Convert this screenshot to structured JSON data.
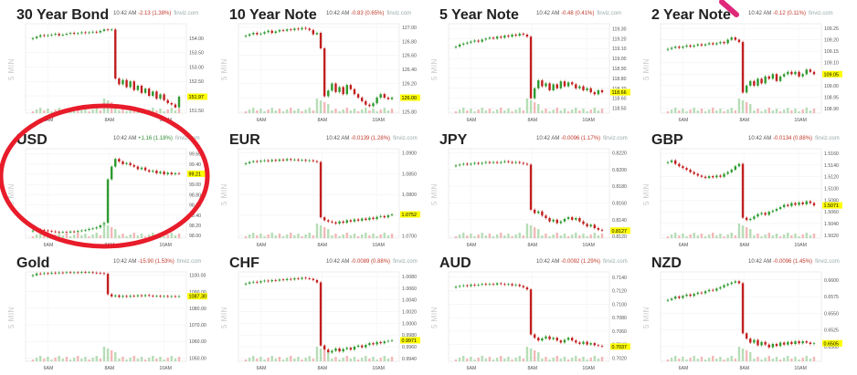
{
  "chart_data": [
    {
      "type": "candlestick",
      "title": "30 Year Bond",
      "interval_label": "5 MIN",
      "time": "10:42 AM",
      "change": "-2.13 (1.38%)",
      "source": "finviz.com",
      "y_ticks": [
        "154.00",
        "153.50",
        "153.00",
        "152.50",
        "152.00",
        "151.50"
      ],
      "y_range": [
        151.4,
        154.5
      ],
      "x_ticks": [
        "6AM",
        "8AM",
        "10AM"
      ],
      "last_value": "151.97",
      "close": [
        154.0,
        154.05,
        154.1,
        154.08,
        154.1,
        154.12,
        154.15,
        154.1,
        154.12,
        154.15,
        154.18,
        154.15,
        154.17,
        154.2,
        154.18,
        154.2,
        154.22,
        154.2,
        154.25,
        154.3,
        154.28,
        154.3,
        152.6,
        152.4,
        152.55,
        152.3,
        152.5,
        152.2,
        152.35,
        152.1,
        152.25,
        152.0,
        152.15,
        151.9,
        152.05,
        151.85,
        151.75,
        151.7,
        151.6,
        151.97
      ]
    },
    {
      "type": "candlestick",
      "title": "10 Year Note",
      "interval_label": "5 MIN",
      "time": "10:42 AM",
      "change": "-0.83 (0.65%)",
      "source": "finviz.com",
      "y_ticks": [
        "127.00",
        "126.80",
        "126.60",
        "126.40",
        "126.20",
        "126.00",
        "125.80"
      ],
      "y_range": [
        125.78,
        127.05
      ],
      "x_ticks": [
        "6AM",
        "8AM",
        "10AM"
      ],
      "last_value": "126.00",
      "close": [
        126.88,
        126.9,
        126.92,
        126.9,
        126.91,
        126.93,
        126.95,
        126.92,
        126.94,
        126.96,
        126.95,
        126.97,
        126.96,
        126.98,
        126.97,
        126.99,
        126.98,
        126.96,
        126.9,
        126.92,
        126.7,
        126.02,
        126.1,
        126.2,
        126.08,
        126.15,
        126.05,
        126.18,
        126.12,
        126.05,
        126.0,
        125.95,
        125.9,
        125.88,
        125.92,
        126.0,
        126.05,
        126.0,
        125.98,
        126.0
      ]
    },
    {
      "type": "candlestick",
      "title": "5 Year Note",
      "interval_label": "5 MIN",
      "time": "10:42 AM",
      "change": "-0.48 (0.41%)",
      "source": "finviz.com",
      "y_ticks": [
        "119.30",
        "119.20",
        "119.10",
        "119.00",
        "118.90",
        "118.80",
        "118.70",
        "118.60",
        "118.50"
      ],
      "y_range": [
        118.45,
        119.35
      ],
      "x_ticks": [
        "6AM",
        "8AM",
        "10AM"
      ],
      "last_value": "118.66",
      "close": [
        119.12,
        119.14,
        119.15,
        119.16,
        119.17,
        119.18,
        119.17,
        119.19,
        119.2,
        119.21,
        119.2,
        119.22,
        119.21,
        119.23,
        119.22,
        119.24,
        119.23,
        119.25,
        119.24,
        119.22,
        118.6,
        118.7,
        118.78,
        118.72,
        118.75,
        118.68,
        118.74,
        118.7,
        118.77,
        118.72,
        118.76,
        118.74,
        118.7,
        118.72,
        118.68,
        118.7,
        118.66,
        118.64,
        118.68,
        118.66
      ]
    },
    {
      "type": "candlestick",
      "title": "2 Year Note",
      "interval_label": "5 MIN",
      "time": "10:42 AM",
      "change": "-0.12 (0.11%)",
      "source": "finviz.com",
      "y_ticks": [
        "109.25",
        "109.20",
        "109.15",
        "109.10",
        "109.05",
        "109.00",
        "108.95",
        "108.90"
      ],
      "y_range": [
        108.88,
        109.27
      ],
      "x_ticks": [
        "6AM",
        "8AM",
        "10AM"
      ],
      "last_value": "109.05",
      "close": [
        109.16,
        109.165,
        109.17,
        109.165,
        109.17,
        109.175,
        109.17,
        109.175,
        109.18,
        109.175,
        109.18,
        109.185,
        109.18,
        109.185,
        109.19,
        109.185,
        109.2,
        109.21,
        109.2,
        109.19,
        108.97,
        109.0,
        109.02,
        109.0,
        109.03,
        109.01,
        109.04,
        109.03,
        109.05,
        109.02,
        109.04,
        109.05,
        109.06,
        109.05,
        109.06,
        109.04,
        109.05,
        109.07,
        109.06,
        109.05
      ]
    },
    {
      "type": "candlestick",
      "title": "USD",
      "interval_label": "5 MIN",
      "time": "10:42 AM",
      "change": "+1.16 (1.18%)",
      "change_up": true,
      "source": "finviz.com",
      "y_ticks": [
        "99.60",
        "99.40",
        "99.20",
        "99.00",
        "98.80",
        "98.60",
        "98.40",
        "98.20",
        "98.00"
      ],
      "y_range": [
        97.95,
        99.7
      ],
      "x_ticks": [
        "6AM",
        "8AM",
        "10AM"
      ],
      "last_value": "99.21",
      "close": [
        98.1,
        98.12,
        98.11,
        98.1,
        98.09,
        98.08,
        98.07,
        98.06,
        98.07,
        98.06,
        98.08,
        98.07,
        98.09,
        98.1,
        98.11,
        98.13,
        98.14,
        98.16,
        98.2,
        98.25,
        99.1,
        99.35,
        99.5,
        99.45,
        99.4,
        99.42,
        99.38,
        99.35,
        99.3,
        99.33,
        99.28,
        99.25,
        99.27,
        99.22,
        99.25,
        99.2,
        99.23,
        99.2,
        99.22,
        99.21
      ]
    },
    {
      "type": "candlestick",
      "title": "EUR",
      "interval_label": "5 MIN",
      "time": "10:42 AM",
      "change": "-0.0139 (1.28%)",
      "source": "finviz.com",
      "y_ticks": [
        "1.0900",
        "1.0850",
        "1.0800",
        "1.0750",
        "1.0700"
      ],
      "y_range": [
        1.0695,
        1.091
      ],
      "x_ticks": [
        "6AM",
        "8AM",
        "10AM"
      ],
      "last_value": "1.0752",
      "close": [
        1.0875,
        1.0878,
        1.088,
        1.0879,
        1.0881,
        1.0882,
        1.088,
        1.0883,
        1.0881,
        1.0884,
        1.0882,
        1.0885,
        1.0883,
        1.0884,
        1.0882,
        1.0883,
        1.0881,
        1.0882,
        1.088,
        1.0878,
        1.0745,
        1.0738,
        1.0735,
        1.0733,
        1.073,
        1.0735,
        1.0732,
        1.0738,
        1.0735,
        1.074,
        1.0737,
        1.0742,
        1.0739,
        1.0744,
        1.0741,
        1.0746,
        1.0748,
        1.0745,
        1.075,
        1.0752
      ]
    },
    {
      "type": "candlestick",
      "title": "JPY",
      "interval_label": "5 MIN",
      "time": "10:42 AM",
      "change": "-0.0096 (1.17%)",
      "source": "finviz.com",
      "y_ticks": [
        "0.8220",
        "0.8200",
        "0.8180",
        "0.8160",
        "0.8140",
        "0.8120"
      ],
      "y_range": [
        0.8118,
        0.8225
      ],
      "x_ticks": [
        "6AM",
        "8AM",
        "10AM"
      ],
      "last_value": "0.8127",
      "close": [
        0.8205,
        0.8206,
        0.8207,
        0.8206,
        0.8207,
        0.8208,
        0.8207,
        0.8208,
        0.8209,
        0.8208,
        0.8209,
        0.8208,
        0.8209,
        0.821,
        0.8209,
        0.8208,
        0.8209,
        0.8208,
        0.8207,
        0.8206,
        0.8152,
        0.8148,
        0.815,
        0.8145,
        0.8142,
        0.8138,
        0.814,
        0.8136,
        0.8138,
        0.8141,
        0.8143,
        0.814,
        0.8142,
        0.8138,
        0.8135,
        0.8132,
        0.8134,
        0.813,
        0.8128,
        0.8127
      ]
    },
    {
      "type": "candlestick",
      "title": "GBP",
      "interval_label": "5 MIN",
      "time": "10:42 AM",
      "change": "-0.0134 (0.88%)",
      "source": "finviz.com",
      "y_ticks": [
        "1.5160",
        "1.5140",
        "1.5120",
        "1.5100",
        "1.5080",
        "1.5060",
        "1.5040",
        "1.5020"
      ],
      "y_range": [
        1.5015,
        1.5168
      ],
      "x_ticks": [
        "6AM",
        "8AM",
        "10AM"
      ],
      "last_value": "1.5071",
      "close": [
        1.5145,
        1.5148,
        1.5142,
        1.5138,
        1.5135,
        1.5132,
        1.5128,
        1.5125,
        1.5122,
        1.512,
        1.5118,
        1.5121,
        1.5119,
        1.5122,
        1.512,
        1.5125,
        1.5128,
        1.5132,
        1.5138,
        1.5142,
        1.505,
        1.5046,
        1.5048,
        1.5052,
        1.5056,
        1.5058,
        1.5055,
        1.506,
        1.5062,
        1.5065,
        1.5068,
        1.5072,
        1.507,
        1.5075,
        1.5072,
        1.5076,
        1.5073,
        1.5078,
        1.5075,
        1.5071
      ]
    },
    {
      "type": "candlestick",
      "title": "Gold",
      "interval_label": "5 MIN",
      "time": "10:42 AM",
      "change": "-15.90 (1.53%)",
      "source": "finviz.com",
      "y_ticks": [
        "1100.00",
        "1090.00",
        "1080.00",
        "1070.00",
        "1060.00",
        "1050.00"
      ],
      "y_range": [
        1048,
        1102
      ],
      "x_ticks": [
        "6AM",
        "8AM",
        "10AM"
      ],
      "last_value": "1087.30",
      "close": [
        1100.0,
        1101.0,
        1100.8,
        1101.2,
        1101.0,
        1101.5,
        1101.3,
        1101.6,
        1101.4,
        1101.8,
        1101.5,
        1101.7,
        1101.6,
        1101.9,
        1101.7,
        1101.8,
        1101.5,
        1101.4,
        1101.2,
        1100.8,
        1088.5,
        1087.2,
        1087.8,
        1086.9,
        1087.5,
        1087.0,
        1087.6,
        1087.3,
        1087.9,
        1087.4,
        1088.0,
        1087.6,
        1087.3,
        1087.5,
        1087.2,
        1087.4,
        1087.1,
        1087.3,
        1087.2,
        1087.3
      ]
    },
    {
      "type": "candlestick",
      "title": "CHF",
      "interval_label": "5 MIN",
      "time": "10:42 AM",
      "change": "-0.0089 (0.88%)",
      "source": "finviz.com",
      "y_ticks": [
        "1.0080",
        "1.0060",
        "1.0040",
        "1.0020",
        "1.0000",
        "0.9980",
        "0.9960",
        "0.9940"
      ],
      "y_range": [
        0.9935,
        1.0088
      ],
      "x_ticks": [
        "6AM",
        "8AM",
        "10AM"
      ],
      "last_value": "0.9971",
      "close": [
        1.0068,
        1.007,
        1.0071,
        1.007,
        1.0072,
        1.0073,
        1.0072,
        1.0074,
        1.0073,
        1.0075,
        1.0074,
        1.0076,
        1.0075,
        1.0077,
        1.0076,
        1.0078,
        1.0077,
        1.0076,
        1.0074,
        1.007,
        0.9962,
        0.9955,
        0.995,
        0.9953,
        0.9957,
        0.9952,
        0.9956,
        0.9958,
        0.9955,
        0.996,
        0.9962,
        0.9959,
        0.9963,
        0.9966,
        0.9964,
        0.9968,
        0.9966,
        0.9969,
        0.997,
        0.9971
      ]
    },
    {
      "type": "candlestick",
      "title": "AUD",
      "interval_label": "5 MIN",
      "time": "10:42 AM",
      "change": "-0.0092 (1.29%)",
      "source": "finviz.com",
      "y_ticks": [
        "0.7140",
        "0.7120",
        "0.7100",
        "0.7080",
        "0.7060",
        "0.7040",
        "0.7020"
      ],
      "y_range": [
        0.7015,
        0.7148
      ],
      "x_ticks": [
        "6AM",
        "8AM",
        "10AM"
      ],
      "last_value": "0.7037",
      "close": [
        0.7126,
        0.7127,
        0.7128,
        0.7127,
        0.7129,
        0.7128,
        0.7129,
        0.713,
        0.7129,
        0.713,
        0.7129,
        0.7131,
        0.713,
        0.7129,
        0.713,
        0.7128,
        0.7129,
        0.7127,
        0.7125,
        0.7122,
        0.7055,
        0.705,
        0.7046,
        0.7049,
        0.7052,
        0.7048,
        0.705,
        0.7046,
        0.7043,
        0.7047,
        0.705,
        0.7046,
        0.7043,
        0.7041,
        0.7044,
        0.704,
        0.7042,
        0.7039,
        0.7038,
        0.7037
      ]
    },
    {
      "type": "candlestick",
      "title": "NZD",
      "interval_label": "5 MIN",
      "time": "10:42 AM",
      "change": "-0.0096 (1.45%)",
      "source": "finviz.com",
      "y_ticks": [
        "0.6600",
        "0.6575",
        "0.6550",
        "0.6525",
        "0.6500",
        "0.6475"
      ],
      "y_range": [
        0.6478,
        0.6612
      ],
      "x_ticks": [
        "6AM",
        "8AM",
        "10AM"
      ],
      "last_value": "0.6505",
      "close": [
        0.657,
        0.6572,
        0.6575,
        0.6573,
        0.6576,
        0.6578,
        0.6576,
        0.6579,
        0.6581,
        0.658,
        0.6583,
        0.6585,
        0.6584,
        0.6587,
        0.6589,
        0.6592,
        0.6594,
        0.6596,
        0.6598,
        0.6595,
        0.652,
        0.6512,
        0.6506,
        0.651,
        0.6502,
        0.6507,
        0.6503,
        0.6499,
        0.6504,
        0.6501,
        0.6506,
        0.6503,
        0.6507,
        0.6504,
        0.6508,
        0.6505,
        0.6508,
        0.6506,
        0.6504,
        0.6505
      ]
    }
  ],
  "colors": {
    "up": "#2e9a2e",
    "down": "#c21e1e",
    "volume_up": "#9fd39f",
    "volume_down": "#f0a0a0",
    "last_tag": "#ffff00",
    "annotation": "#e81c2a",
    "arrow": "#e0277a"
  }
}
